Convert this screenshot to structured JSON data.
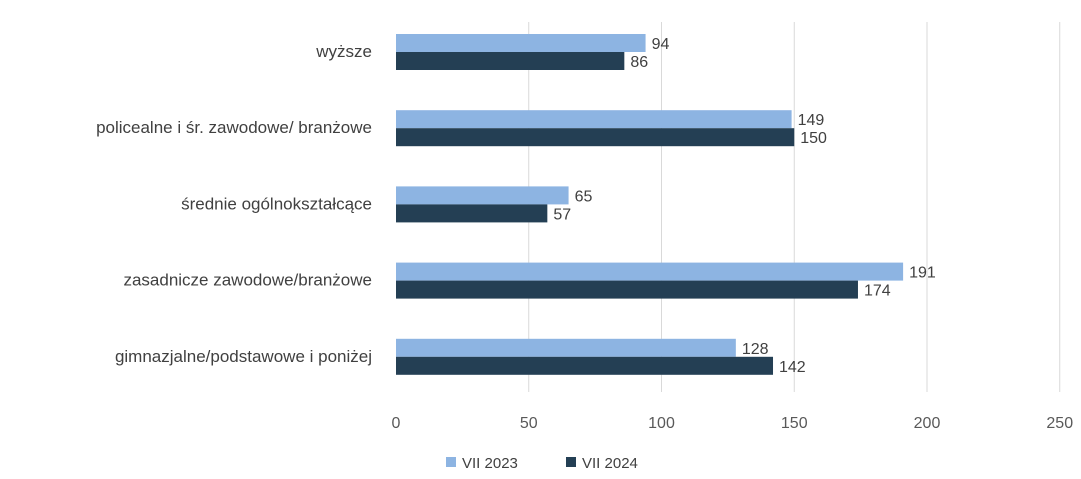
{
  "chart_data": {
    "type": "bar",
    "orientation": "horizontal",
    "categories": [
      "wyższe",
      "policealne i śr. zawodowe/ branżowe",
      "średnie ogólnokształcące",
      "zasadnicze zawodowe/branżowe",
      "gimnazjalne/podstawowe i poniżej"
    ],
    "series": [
      {
        "name": "VII 2023",
        "values": [
          94,
          149,
          65,
          191,
          128
        ],
        "color": "#8db4e2"
      },
      {
        "name": "VII 2024",
        "values": [
          86,
          150,
          57,
          174,
          142
        ],
        "color": "#243f54"
      }
    ],
    "xlim": [
      0,
      250
    ],
    "xticks": [
      0,
      50,
      100,
      150,
      200,
      250
    ],
    "grid": true,
    "legend_position": "bottom",
    "data_labels": true
  }
}
